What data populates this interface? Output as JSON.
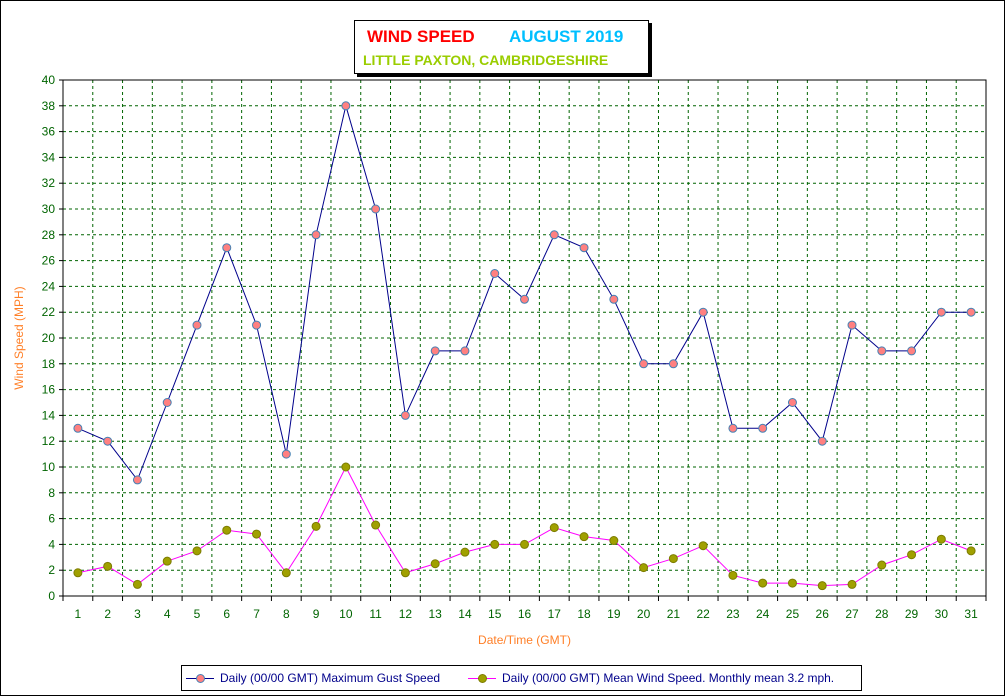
{
  "title": {
    "part1": "WIND SPEED",
    "part2": "AUGUST 2019",
    "location": "LITTLE PAXTON, CAMBRIDGESHIRE"
  },
  "legend": {
    "gust": "Daily (00/00 GMT) Maximum Gust Speed",
    "mean": "Daily (00/00 GMT) Mean Wind Speed. Monthly mean 3.2 mph."
  },
  "colors": {
    "gust_line": "#00008b",
    "gust_marker": "#ff8080",
    "mean_line": "#ff00ff",
    "mean_marker": "#a0a000",
    "grid": "#006400",
    "tick_text": "#006400",
    "axis_label": "#ff7f27"
  },
  "chart_data": {
    "type": "line",
    "xlabel": "Date/Time (GMT)",
    "ylabel": "Wind Speed (MPH)",
    "ylim": [
      0,
      40
    ],
    "yticks": [
      0,
      2,
      4,
      6,
      8,
      10,
      12,
      14,
      16,
      18,
      20,
      22,
      24,
      26,
      28,
      30,
      32,
      34,
      36,
      38,
      40
    ],
    "grid": true,
    "legend_position": "bottom",
    "x": [
      1,
      2,
      3,
      4,
      5,
      6,
      7,
      8,
      9,
      10,
      11,
      12,
      13,
      14,
      15,
      16,
      17,
      18,
      19,
      20,
      21,
      22,
      23,
      24,
      25,
      26,
      27,
      28,
      29,
      30,
      31
    ],
    "series": [
      {
        "name": "Daily (00/00 GMT) Maximum Gust Speed",
        "values": [
          13,
          12,
          9,
          15,
          21,
          27,
          21,
          11,
          28,
          38,
          30,
          14,
          19,
          19,
          25,
          23,
          28,
          27,
          23,
          18,
          18,
          22,
          13,
          13,
          15,
          12,
          21,
          19,
          19,
          22,
          22
        ]
      },
      {
        "name": "Daily (00/00 GMT) Mean Wind Speed. Monthly mean 3.2 mph.",
        "values": [
          1.8,
          2.3,
          0.9,
          2.7,
          3.5,
          5.1,
          4.8,
          1.8,
          5.4,
          10.0,
          5.5,
          1.8,
          2.5,
          3.4,
          4.0,
          4.0,
          5.3,
          4.6,
          4.3,
          2.2,
          2.9,
          3.9,
          1.6,
          1.0,
          1.0,
          0.8,
          0.9,
          2.4,
          3.2,
          4.4,
          3.5
        ]
      }
    ]
  }
}
